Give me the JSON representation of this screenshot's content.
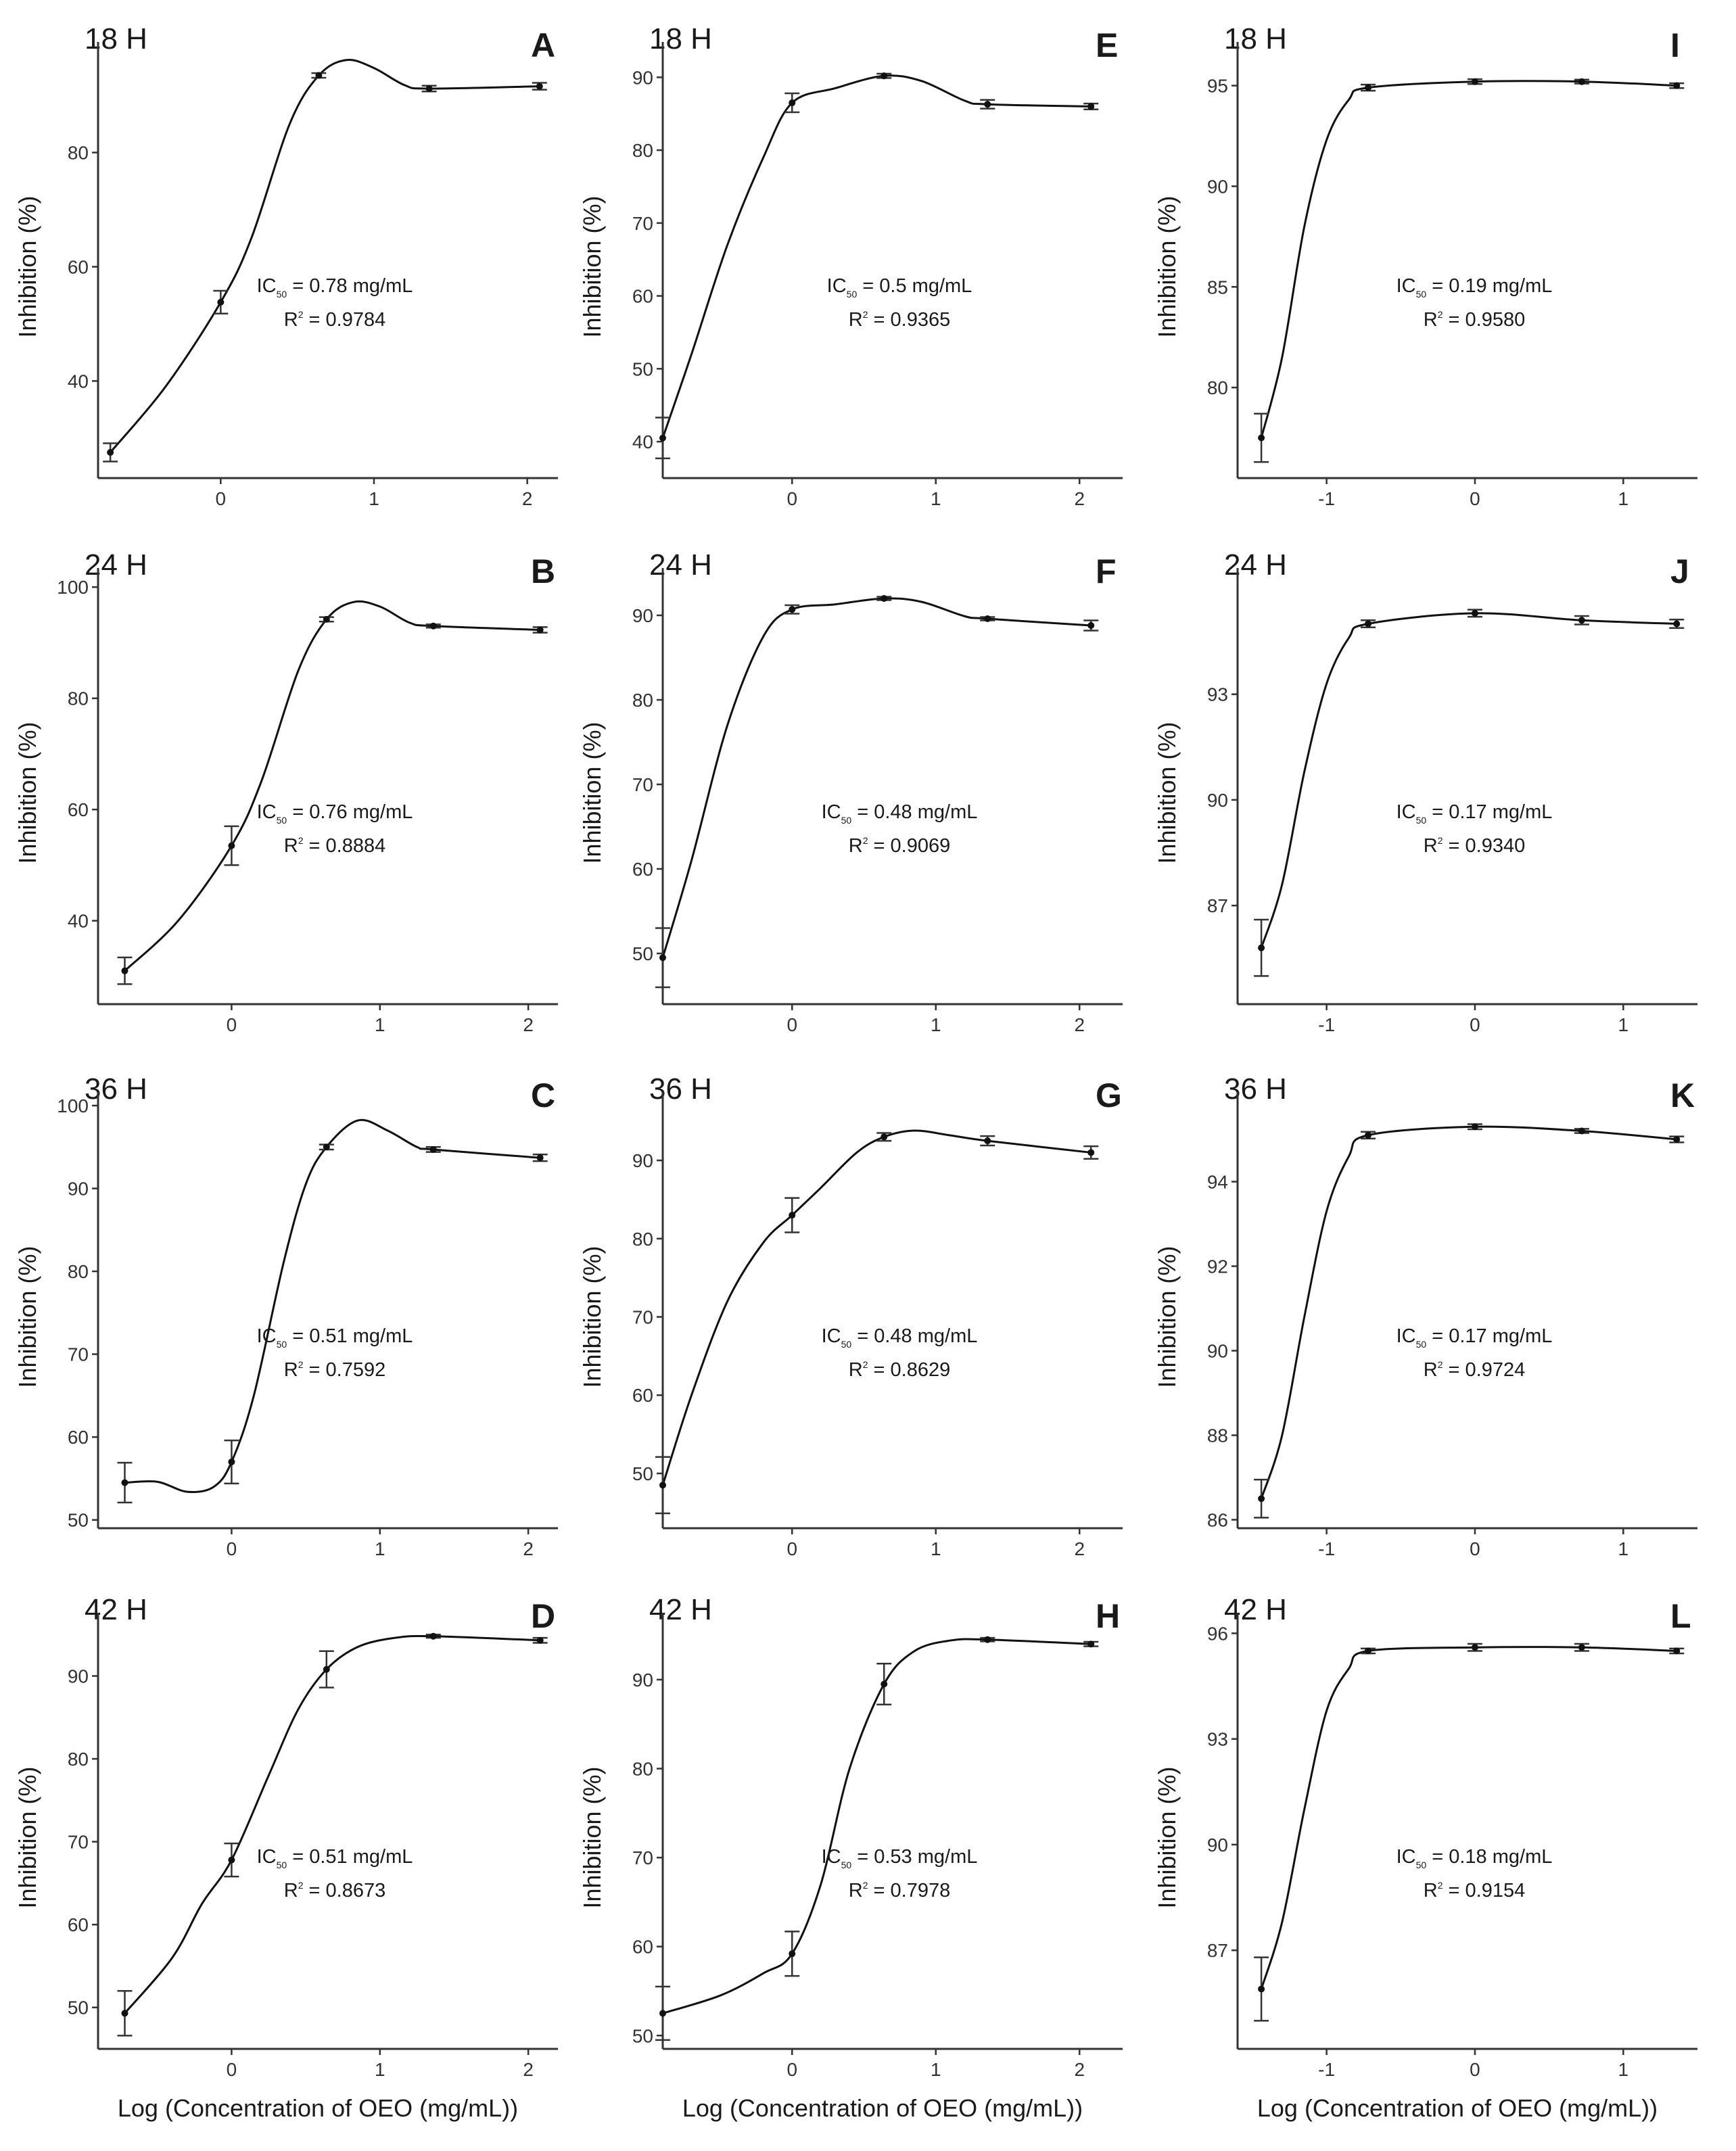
{
  "figure": {
    "xlabel": "Log (Concentration of OEO (mg/mL))",
    "ylabel": "Inhibition (%)"
  },
  "chart_data": [
    {
      "panel": "A",
      "time": "18 H",
      "type": "line",
      "xlim": [
        -0.8,
        2.2
      ],
      "ylim": [
        23,
        97
      ],
      "xticks": [
        0,
        1,
        2
      ],
      "yticks": [
        40,
        60,
        80
      ],
      "ic50_pre": "IC",
      "ic50_sub": "50",
      "ic50_post": " = 0.78 mg/mL",
      "r2_pre": "R",
      "r2_sup": "2",
      "r2_post": " = 0.9784",
      "x": [
        -0.72,
        -0.0,
        0.64,
        1.36,
        2.08
      ],
      "y": [
        27.5,
        53.8,
        93.5,
        91.2,
        91.6
      ],
      "err": [
        1.6,
        2.0,
        0.4,
        0.5,
        0.6
      ],
      "curve": [
        [
          -0.72,
          27.5
        ],
        [
          -0.36,
          39
        ],
        [
          -0.0,
          53.8
        ],
        [
          0.2,
          65
        ],
        [
          0.45,
          85
        ],
        [
          0.64,
          93.5
        ],
        [
          0.82,
          96.2
        ],
        [
          1.0,
          94.8
        ],
        [
          1.2,
          91.8
        ],
        [
          1.36,
          91.2
        ],
        [
          2.08,
          91.6
        ]
      ]
    },
    {
      "panel": "E",
      "time": "18 H",
      "type": "line",
      "xlim": [
        -0.9,
        2.3
      ],
      "ylim": [
        35,
        93
      ],
      "xticks": [
        0,
        1,
        2
      ],
      "yticks": [
        40,
        50,
        60,
        70,
        80,
        90
      ],
      "ic50_pre": "IC",
      "ic50_sub": "50",
      "ic50_post": " = 0.5 mg/mL",
      "r2_pre": "R",
      "r2_sup": "2",
      "r2_post": " = 0.9365",
      "x": [
        -0.9,
        0.0,
        0.64,
        1.36,
        2.08
      ],
      "y": [
        40.5,
        86.5,
        90.2,
        86.3,
        86.0
      ],
      "err": [
        2.8,
        1.3,
        0.3,
        0.6,
        0.4
      ],
      "curve": [
        [
          -0.9,
          40.5
        ],
        [
          -0.7,
          52
        ],
        [
          -0.45,
          67
        ],
        [
          -0.2,
          79
        ],
        [
          0.0,
          86.5
        ],
        [
          0.3,
          88.5
        ],
        [
          0.64,
          90.2
        ],
        [
          0.9,
          89.5
        ],
        [
          1.2,
          86.8
        ],
        [
          1.36,
          86.3
        ],
        [
          2.08,
          86.0
        ]
      ]
    },
    {
      "panel": "I",
      "time": "18 H",
      "type": "line",
      "xlim": [
        -1.6,
        1.5
      ],
      "ylim": [
        75.5,
        96.5
      ],
      "xticks": [
        -1,
        0,
        1
      ],
      "yticks": [
        80,
        85,
        90,
        95
      ],
      "ic50_pre": "IC",
      "ic50_sub": "50",
      "ic50_post": " = 0.19 mg/mL",
      "r2_pre": "R",
      "r2_sup": "2",
      "r2_post": " = 0.9580",
      "x": [
        -1.44,
        -0.72,
        0.0,
        0.72,
        1.36
      ],
      "y": [
        77.5,
        94.9,
        95.2,
        95.2,
        95.0
      ],
      "err": [
        1.2,
        0.15,
        0.12,
        0.1,
        0.12
      ],
      "curve": [
        [
          -1.44,
          77.5
        ],
        [
          -1.3,
          81.5
        ],
        [
          -1.15,
          88
        ],
        [
          -1.0,
          92.3
        ],
        [
          -0.85,
          94.3
        ],
        [
          -0.72,
          94.9
        ],
        [
          0.0,
          95.2
        ],
        [
          0.72,
          95.2
        ],
        [
          1.36,
          95.0
        ]
      ]
    },
    {
      "panel": "B",
      "time": "24 H",
      "type": "line",
      "xlim": [
        -0.9,
        2.2
      ],
      "ylim": [
        25,
        101
      ],
      "xticks": [
        0,
        1,
        2
      ],
      "yticks": [
        40,
        60,
        80,
        100
      ],
      "ic50_pre": "IC",
      "ic50_sub": "50",
      "ic50_post": " = 0.76 mg/mL",
      "r2_pre": "R",
      "r2_sup": "2",
      "r2_post": "  = 0.8884",
      "x": [
        -0.72,
        0.0,
        0.64,
        1.36,
        2.08
      ],
      "y": [
        31.0,
        53.5,
        94.2,
        93.0,
        92.3
      ],
      "err": [
        2.4,
        3.5,
        0.4,
        0.3,
        0.5
      ],
      "curve": [
        [
          -0.72,
          31.0
        ],
        [
          -0.36,
          40
        ],
        [
          0.0,
          53.5
        ],
        [
          0.2,
          65
        ],
        [
          0.45,
          85
        ],
        [
          0.64,
          94.2
        ],
        [
          0.82,
          97.3
        ],
        [
          1.0,
          96.5
        ],
        [
          1.2,
          93.6
        ],
        [
          1.36,
          93.0
        ],
        [
          2.08,
          92.3
        ]
      ]
    },
    {
      "panel": "F",
      "time": "24 H",
      "type": "line",
      "xlim": [
        -0.9,
        2.3
      ],
      "ylim": [
        44,
        94
      ],
      "xticks": [
        0,
        1,
        2
      ],
      "yticks": [
        50,
        60,
        70,
        80,
        90
      ],
      "ic50_pre": "IC",
      "ic50_sub": "50",
      "ic50_post": " = 0.48 mg/mL",
      "r2_pre": "R",
      "r2_sup": "2",
      "r2_post": " = 0.9069",
      "x": [
        -0.9,
        0.0,
        0.64,
        1.36,
        2.08
      ],
      "y": [
        49.5,
        90.7,
        92.0,
        89.6,
        88.8
      ],
      "err": [
        3.5,
        0.5,
        0.2,
        0.2,
        0.6
      ],
      "curve": [
        [
          -0.9,
          49.5
        ],
        [
          -0.7,
          61
        ],
        [
          -0.45,
          77
        ],
        [
          -0.2,
          87.5
        ],
        [
          0.0,
          90.7
        ],
        [
          0.3,
          91.3
        ],
        [
          0.64,
          92.0
        ],
        [
          0.9,
          91.6
        ],
        [
          1.2,
          89.9
        ],
        [
          1.36,
          89.6
        ],
        [
          2.08,
          88.8
        ]
      ]
    },
    {
      "panel": "J",
      "time": "24 H",
      "type": "line",
      "xlim": [
        -1.6,
        1.5
      ],
      "ylim": [
        84.2,
        96.2
      ],
      "xticks": [
        -1,
        0,
        1
      ],
      "yticks": [
        87,
        90,
        93
      ],
      "ic50_pre": "IC",
      "ic50_sub": "50",
      "ic50_post": " = 0.17 mg/mL",
      "r2_pre": "R",
      "r2_sup": "2",
      "r2_post": " = 0.9340",
      "x": [
        -1.44,
        -0.72,
        0.0,
        0.72,
        1.36
      ],
      "y": [
        85.8,
        95.0,
        95.3,
        95.1,
        95.0
      ],
      "err": [
        0.8,
        0.1,
        0.1,
        0.12,
        0.12
      ],
      "curve": [
        [
          -1.44,
          85.8
        ],
        [
          -1.3,
          87.6
        ],
        [
          -1.15,
          90.8
        ],
        [
          -1.0,
          93.3
        ],
        [
          -0.85,
          94.6
        ],
        [
          -0.72,
          95.0
        ],
        [
          0.0,
          95.3
        ],
        [
          0.72,
          95.1
        ],
        [
          1.36,
          95.0
        ]
      ]
    },
    {
      "panel": "C",
      "time": "36 H",
      "type": "line",
      "xlim": [
        -0.9,
        2.2
      ],
      "ylim": [
        49,
        100
      ],
      "xticks": [
        0,
        1,
        2
      ],
      "yticks": [
        50,
        60,
        70,
        80,
        90,
        100
      ],
      "ic50_pre": "IC",
      "ic50_sub": "50",
      "ic50_post": " = 0.51 mg/mL",
      "r2_pre": "R",
      "r2_sup": "2",
      "r2_post": " = 0.7592",
      "x": [
        -0.72,
        0.0,
        0.64,
        1.36,
        2.08
      ],
      "y": [
        54.5,
        57.0,
        95.0,
        94.7,
        93.7
      ],
      "err": [
        2.4,
        2.6,
        0.3,
        0.3,
        0.4
      ],
      "curve": [
        [
          -0.72,
          54.5
        ],
        [
          -0.5,
          54.6
        ],
        [
          -0.3,
          53.4
        ],
        [
          -0.12,
          54.0
        ],
        [
          0.0,
          57.0
        ],
        [
          0.15,
          65
        ],
        [
          0.35,
          81
        ],
        [
          0.5,
          90.5
        ],
        [
          0.64,
          95.0
        ],
        [
          0.85,
          98.2
        ],
        [
          1.05,
          97.0
        ],
        [
          1.25,
          95.0
        ],
        [
          1.36,
          94.7
        ],
        [
          2.08,
          93.7
        ]
      ]
    },
    {
      "panel": "G",
      "time": "36 H",
      "type": "line",
      "xlim": [
        -0.9,
        2.3
      ],
      "ylim": [
        43,
        97
      ],
      "xticks": [
        0,
        1,
        2
      ],
      "yticks": [
        50,
        60,
        70,
        80,
        90
      ],
      "ic50_pre": "IC",
      "ic50_sub": "50",
      "ic50_post": " = 0.48 mg/mL",
      "r2_pre": "R",
      "r2_sup": "2",
      "r2_post": " = 0.8629",
      "x": [
        -0.9,
        0.0,
        0.64,
        1.36,
        2.08
      ],
      "y": [
        48.5,
        83.0,
        93.0,
        92.5,
        91.0
      ],
      "err": [
        3.6,
        2.2,
        0.5,
        0.6,
        0.8
      ],
      "curve": [
        [
          -0.9,
          48.5
        ],
        [
          -0.7,
          60
        ],
        [
          -0.45,
          72
        ],
        [
          -0.2,
          79.5
        ],
        [
          0.0,
          83.0
        ],
        [
          0.2,
          86.5
        ],
        [
          0.45,
          91.0
        ],
        [
          0.64,
          93.0
        ],
        [
          0.85,
          93.8
        ],
        [
          1.1,
          93.2
        ],
        [
          1.36,
          92.5
        ],
        [
          2.08,
          91.0
        ]
      ]
    },
    {
      "panel": "K",
      "time": "36 H",
      "type": "line",
      "xlim": [
        -1.6,
        1.5
      ],
      "ylim": [
        85.8,
        95.8
      ],
      "xticks": [
        -1,
        0,
        1
      ],
      "yticks": [
        86,
        88,
        90,
        92,
        94
      ],
      "ic50_pre": "IC",
      "ic50_sub": "50",
      "ic50_post": " = 0.17 mg/mL",
      "r2_pre": "R",
      "r2_sup": "2",
      "r2_post": " = 0.9724",
      "x": [
        -1.44,
        -0.72,
        0.0,
        0.72,
        1.36
      ],
      "y": [
        86.5,
        95.1,
        95.3,
        95.2,
        95.0
      ],
      "err": [
        0.45,
        0.08,
        0.06,
        0.05,
        0.07
      ],
      "curve": [
        [
          -1.44,
          86.5
        ],
        [
          -1.3,
          88.0
        ],
        [
          -1.15,
          90.8
        ],
        [
          -1.0,
          93.3
        ],
        [
          -0.85,
          94.6
        ],
        [
          -0.72,
          95.1
        ],
        [
          0.0,
          95.3
        ],
        [
          0.72,
          95.2
        ],
        [
          1.36,
          95.0
        ]
      ]
    },
    {
      "panel": "D",
      "time": "42 H",
      "type": "line",
      "xlim": [
        -0.9,
        2.2
      ],
      "ylim": [
        45,
        96
      ],
      "xticks": [
        0,
        1,
        2
      ],
      "yticks": [
        50,
        60,
        70,
        80,
        90
      ],
      "ic50_pre": "IC",
      "ic50_sub": "50",
      "ic50_post": " = 0.51 mg/mL",
      "r2_pre": "R",
      "r2_sup": "2",
      "r2_post": " = 0.8673",
      "x": [
        -0.72,
        0.0,
        0.64,
        1.36,
        2.08
      ],
      "y": [
        49.3,
        67.8,
        90.8,
        94.8,
        94.3
      ],
      "err": [
        2.7,
        2.0,
        2.2,
        0.2,
        0.3
      ],
      "curve": [
        [
          -0.72,
          49.3
        ],
        [
          -0.4,
          56
        ],
        [
          -0.2,
          62.5
        ],
        [
          0.0,
          67.8
        ],
        [
          0.25,
          78
        ],
        [
          0.45,
          86
        ],
        [
          0.64,
          90.8
        ],
        [
          0.85,
          93.5
        ],
        [
          1.1,
          94.6
        ],
        [
          1.36,
          94.8
        ],
        [
          2.08,
          94.3
        ]
      ]
    },
    {
      "panel": "H",
      "time": "42 H",
      "type": "line",
      "xlim": [
        -0.9,
        2.3
      ],
      "ylim": [
        48.5,
        96
      ],
      "xticks": [
        0,
        1,
        2
      ],
      "yticks": [
        50,
        60,
        70,
        80,
        90
      ],
      "ic50_pre": "IC",
      "ic50_sub": "50",
      "ic50_post": " = 0.53 mg/mL",
      "r2_pre": "R",
      "r2_sup": "2",
      "r2_post": " = 0.7978",
      "x": [
        -0.9,
        0.0,
        0.64,
        1.36,
        2.08
      ],
      "y": [
        52.5,
        59.2,
        89.5,
        94.5,
        94.0
      ],
      "err": [
        3.0,
        2.5,
        2.3,
        0.2,
        0.25
      ],
      "curve": [
        [
          -0.9,
          52.5
        ],
        [
          -0.5,
          54.5
        ],
        [
          -0.2,
          57.0
        ],
        [
          0.0,
          59.2
        ],
        [
          0.2,
          67
        ],
        [
          0.4,
          80
        ],
        [
          0.64,
          89.5
        ],
        [
          0.85,
          93.2
        ],
        [
          1.1,
          94.4
        ],
        [
          1.36,
          94.5
        ],
        [
          2.08,
          94.0
        ]
      ]
    },
    {
      "panel": "L",
      "time": "42 H",
      "type": "line",
      "xlim": [
        -1.6,
        1.5
      ],
      "ylim": [
        84.2,
        96.2
      ],
      "xticks": [
        -1,
        0,
        1
      ],
      "yticks": [
        87,
        90,
        93,
        96
      ],
      "ic50_pre": "IC",
      "ic50_sub": "50",
      "ic50_post": " = 0.18 mg/mL",
      "r2_pre": "R",
      "r2_sup": "2",
      "r2_post": " = 0.9154",
      "x": [
        -1.44,
        -0.72,
        0.0,
        0.72,
        1.36
      ],
      "y": [
        85.9,
        95.5,
        95.6,
        95.6,
        95.5
      ],
      "err": [
        0.9,
        0.07,
        0.1,
        0.1,
        0.07
      ],
      "curve": [
        [
          -1.44,
          85.9
        ],
        [
          -1.3,
          87.8
        ],
        [
          -1.15,
          91.0
        ],
        [
          -1.0,
          93.8
        ],
        [
          -0.85,
          95.0
        ],
        [
          -0.72,
          95.5
        ],
        [
          0.0,
          95.6
        ],
        [
          0.72,
          95.6
        ],
        [
          1.36,
          95.5
        ]
      ]
    }
  ]
}
